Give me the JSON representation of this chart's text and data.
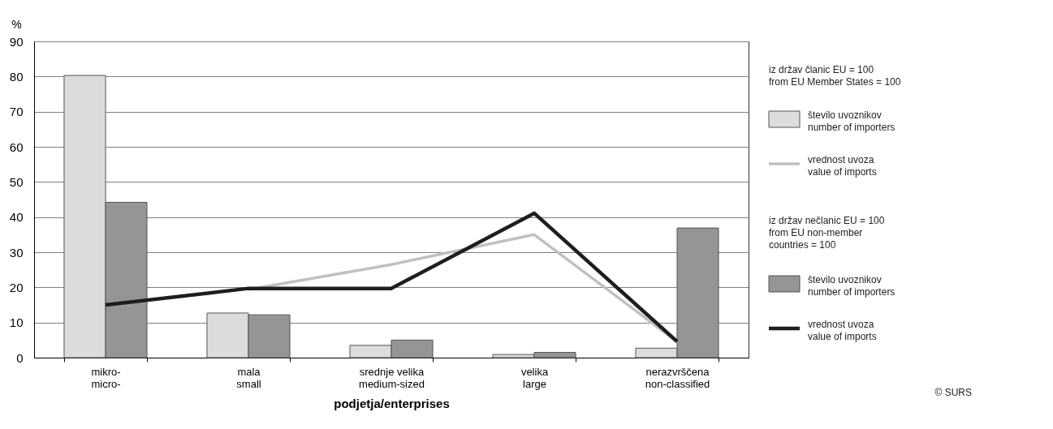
{
  "chart_data": {
    "type": "bar",
    "categories": [
      "mikro-\nmicro-",
      "mala\nsmall",
      "srednje velika\nmedium-sized",
      "velika\nlarge",
      "nerazvrščena\nnon-classified"
    ],
    "series": [
      {
        "name": "število uvoznikov\nnumber of importers",
        "color": "#dcdcdc",
        "values": [
          80.3,
          12.7,
          3.5,
          0.9,
          2.7
        ]
      },
      {
        "name": "vrednost uvoza\nvalue of imports",
        "type": "line",
        "color": "#c0c0c0",
        "values": [
          null,
          19.4,
          26.5,
          35.0,
          4.5
        ]
      },
      {
        "name": "število uvoznikov\nnumber of importers",
        "color": "#959595",
        "values": [
          44.2,
          12.2,
          5.0,
          1.5,
          36.9
        ]
      },
      {
        "name": "vrednost uvoza\nvalue of imports",
        "type": "line",
        "color": "#1e1e1e",
        "values": [
          15.0,
          19.7,
          19.7,
          41.1,
          4.6
        ]
      }
    ],
    "xlabel": "podjetja/enterprises",
    "ylabel": "%",
    "ylim": [
      0,
      90
    ],
    "yticks": [
      0,
      10,
      20,
      30,
      40,
      50,
      60,
      70,
      80,
      90
    ],
    "grid": "y",
    "legend": "right",
    "annotations": [
      "iz držav članic EU = 100\nfrom EU Member States = 100",
      "iz držav nečlanic EU = 100\nfrom EU non-member\ncountries = 100",
      "© SURS"
    ]
  }
}
